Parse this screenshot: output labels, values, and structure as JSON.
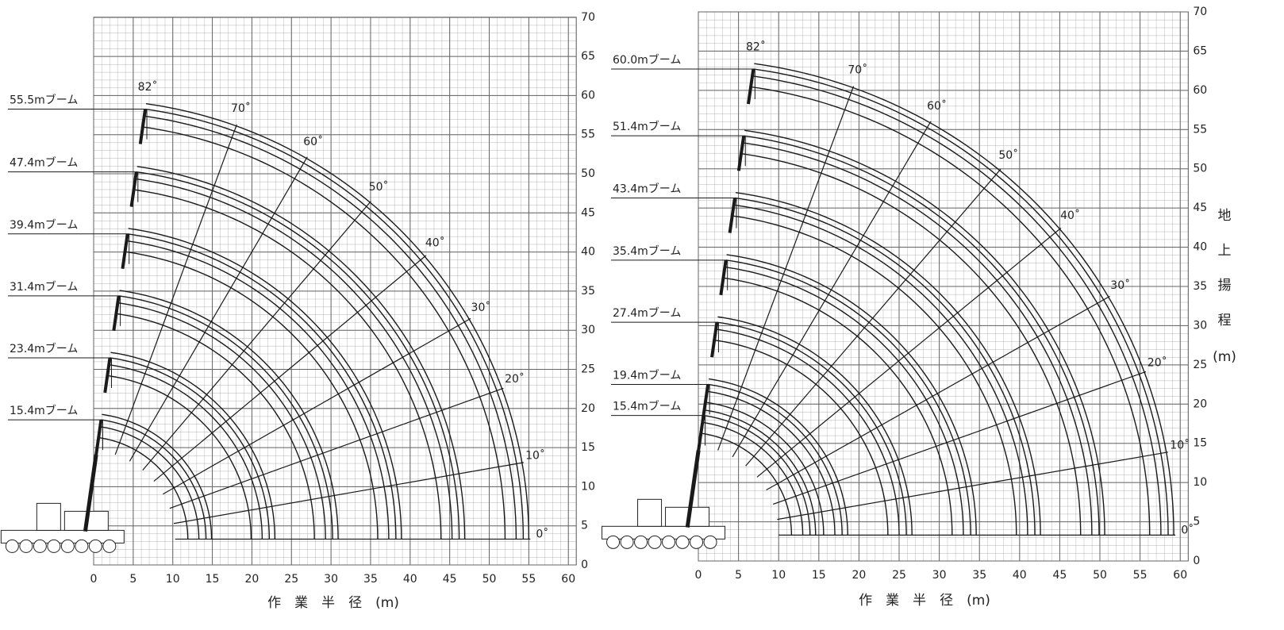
{
  "chart_data": [
    {
      "type": "crane-range",
      "x_label": "作　業　半　径　(m)",
      "xlim": [
        0,
        61
      ],
      "ylim": [
        0,
        70
      ],
      "xticks": [
        0,
        5,
        10,
        15,
        20,
        25,
        30,
        35,
        40,
        45,
        50,
        55,
        60
      ],
      "yticks": [
        0,
        5,
        10,
        15,
        20,
        25,
        30,
        35,
        40,
        45,
        50,
        55,
        60,
        65,
        70
      ],
      "grid": true,
      "color": "#1a1a1a",
      "booms": {
        "values": [
          55.5,
          47.4,
          39.4,
          31.4,
          23.4,
          15.4
        ],
        "value_labels": [
          "55.5mブーム",
          "47.4mブーム",
          "39.4mブーム",
          "31.4mブーム",
          "23.4mブーム",
          "15.4mブーム"
        ]
      },
      "angles": {
        "values": [
          82,
          70,
          60,
          50,
          40,
          30,
          20,
          10,
          0
        ],
        "value_labels": [
          "82˚",
          "70˚",
          "60˚",
          "50˚",
          "40˚",
          "30˚",
          "20˚",
          "10˚",
          "0˚"
        ]
      }
    },
    {
      "type": "crane-range",
      "x_label": "作　業　半　径　(m)",
      "y_label": [
        "地",
        "上",
        "揚",
        "程",
        "(m)"
      ],
      "xlim": [
        0,
        61
      ],
      "ylim": [
        0,
        70
      ],
      "xticks": [
        0,
        5,
        10,
        15,
        20,
        25,
        30,
        35,
        40,
        45,
        50,
        55,
        60
      ],
      "yticks": [
        0,
        5,
        10,
        15,
        20,
        25,
        30,
        35,
        40,
        45,
        50,
        55,
        60,
        65,
        70
      ],
      "grid": true,
      "color": "#1a1a1a",
      "booms": {
        "values": [
          60.0,
          51.4,
          43.4,
          35.4,
          27.4,
          19.4,
          15.4
        ],
        "value_labels": [
          "60.0mブーム",
          "51.4mブーム",
          "43.4mブーム",
          "35.4mブーム",
          "27.4mブーム",
          "19.4mブーム",
          "15.4mブーム"
        ]
      },
      "angles": {
        "values": [
          82,
          70,
          60,
          50,
          40,
          30,
          20,
          10,
          0
        ],
        "value_labels": [
          "82˚",
          "70˚",
          "60˚",
          "50˚",
          "40˚",
          "30˚",
          "20˚",
          "10˚",
          "0˚"
        ]
      }
    }
  ]
}
